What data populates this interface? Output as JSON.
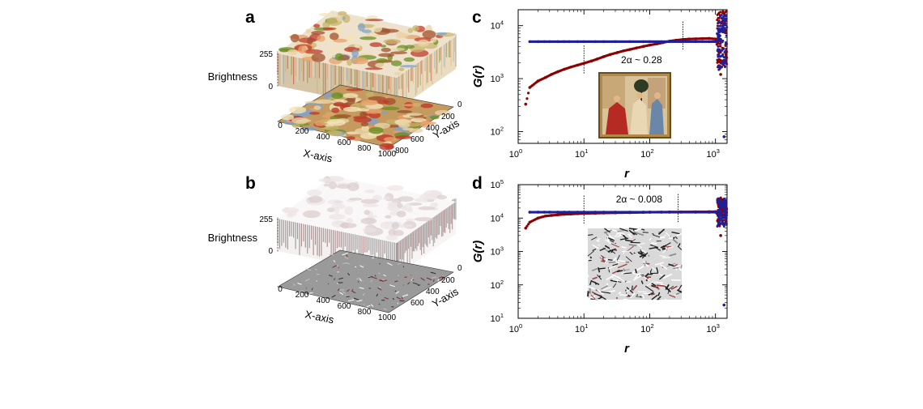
{
  "panels": {
    "a": {
      "label": "a",
      "zlabel": "Brightness",
      "xlabel": "X-axis",
      "ylabel": "Y-axis",
      "z_ticks": [
        "255",
        "0"
      ],
      "x_ticks": [
        "0",
        "200",
        "400",
        "600",
        "800",
        "1000"
      ],
      "y_ticks": [
        "0",
        "200",
        "400",
        "600",
        "800"
      ]
    },
    "b": {
      "label": "b",
      "zlabel": "Brightness",
      "xlabel": "X-axis",
      "ylabel": "Y-axis",
      "z_ticks": [
        "255",
        "0"
      ],
      "x_ticks": [
        "0",
        "200",
        "400",
        "600",
        "800",
        "1000"
      ],
      "y_ticks": [
        "0",
        "200",
        "400",
        "600"
      ]
    },
    "c": {
      "label": "c"
    },
    "d": {
      "label": "d"
    }
  },
  "colors": {
    "red_series": "#8b0000",
    "blue_series": "#1f1f9a",
    "a_palette": [
      "#c0392b",
      "#e8a06a",
      "#f3e3b8",
      "#7fa3c9",
      "#c7b36b",
      "#a0522d",
      "#e9d3a6",
      "#6b8e23"
    ],
    "b_palette": [
      "#2b2b2b",
      "#7a2a2a",
      "#bfbfbf",
      "#ffffff",
      "#999999"
    ]
  },
  "chart_data": [
    {
      "id": "c",
      "type": "scatter",
      "xlabel": "r",
      "ylabel": "G(r)",
      "xscale": "log",
      "yscale": "log",
      "xlim": [
        1,
        1500
      ],
      "ylim": [
        60,
        20000
      ],
      "x_ticks": [
        1,
        10,
        100,
        1000
      ],
      "x_tick_labels": [
        [
          "10",
          "0"
        ],
        [
          "10",
          "1"
        ],
        [
          "10",
          "2"
        ],
        [
          "10",
          "3"
        ]
      ],
      "y_ticks": [
        100,
        1000,
        10000
      ],
      "y_tick_labels": [
        [
          "10",
          "2"
        ],
        [
          "10",
          "3"
        ],
        [
          "10",
          "4"
        ]
      ],
      "annotation": "2α ~ 0.28",
      "fit_range": [
        10,
        320
      ],
      "grid": false,
      "series": [
        {
          "color": "red",
          "x": [
            1.3,
            1.5,
            2,
            2.6,
            3.2,
            4,
            5,
            6.3,
            8,
            10,
            13,
            16,
            20,
            25,
            32,
            40,
            50,
            63,
            80,
            100,
            130,
            160,
            200,
            250,
            320,
            400,
            500,
            630,
            800,
            1000,
            1100,
            1200,
            1250,
            1300
          ],
          "y": [
            330,
            680,
            900,
            1050,
            1200,
            1350,
            1500,
            1650,
            1800,
            1950,
            2150,
            2350,
            2600,
            2850,
            3100,
            3350,
            3550,
            3800,
            4050,
            4300,
            4550,
            4800,
            5100,
            5300,
            5500,
            5600,
            5650,
            5700,
            5750,
            5600,
            3500,
            1200,
            8000,
            11000
          ]
        },
        {
          "color": "blue",
          "x": [
            1.5,
            2,
            2.5,
            3,
            4,
            5,
            6,
            8,
            10,
            15,
            20,
            30,
            50,
            80,
            100,
            150,
            200,
            300,
            500,
            800,
            1000,
            1200,
            1300,
            1350
          ],
          "y": [
            5000,
            5000,
            5000,
            5000,
            5000,
            5000,
            5000,
            5000,
            5000,
            5000,
            5000,
            5000,
            5000,
            5000,
            5000,
            5000,
            5000,
            5000,
            5000,
            5000,
            5000,
            5500,
            14000,
            80
          ]
        }
      ]
    },
    {
      "id": "d",
      "type": "scatter",
      "xlabel": "r",
      "ylabel": "G(r)",
      "xscale": "log",
      "yscale": "log",
      "xlim": [
        1,
        1500
      ],
      "ylim": [
        10,
        100000
      ],
      "x_ticks": [
        1,
        10,
        100,
        1000
      ],
      "x_tick_labels": [
        [
          "10",
          "0"
        ],
        [
          "10",
          "1"
        ],
        [
          "10",
          "2"
        ],
        [
          "10",
          "3"
        ]
      ],
      "y_ticks": [
        10,
        100,
        1000,
        10000,
        100000
      ],
      "y_tick_labels": [
        [
          "10",
          "1"
        ],
        [
          "10",
          "2"
        ],
        [
          "10",
          "3"
        ],
        [
          "10",
          "4"
        ],
        [
          "10",
          "5"
        ]
      ],
      "annotation": "2α ~ 0.008",
      "fit_range": [
        10,
        270
      ],
      "grid": false,
      "series": [
        {
          "color": "red",
          "x": [
            1.3,
            1.5,
            2,
            2.6,
            3.2,
            4,
            5,
            6.3,
            8,
            10,
            15,
            20,
            30,
            50,
            80,
            100,
            150,
            200,
            300,
            500,
            800,
            1000,
            1100,
            1200,
            1300
          ],
          "y": [
            5000,
            7500,
            10000,
            11500,
            12000,
            12500,
            13000,
            13200,
            13500,
            13800,
            14000,
            14200,
            14400,
            14600,
            14800,
            15000,
            15100,
            15200,
            15300,
            15400,
            15500,
            15600,
            12000,
            3000,
            35000
          ]
        },
        {
          "color": "blue",
          "x": [
            1.5,
            2,
            2.5,
            3,
            4,
            5,
            6,
            8,
            10,
            15,
            20,
            30,
            50,
            80,
            100,
            150,
            200,
            300,
            500,
            800,
            1000,
            1200,
            1300,
            1350
          ],
          "y": [
            15000,
            15000,
            15000,
            15000,
            15000,
            15000,
            15000,
            15000,
            15000,
            15000,
            15000,
            15000,
            15000,
            15000,
            15000,
            15000,
            15000,
            15000,
            15000,
            15000,
            15000,
            16000,
            30000,
            25
          ]
        }
      ]
    }
  ]
}
